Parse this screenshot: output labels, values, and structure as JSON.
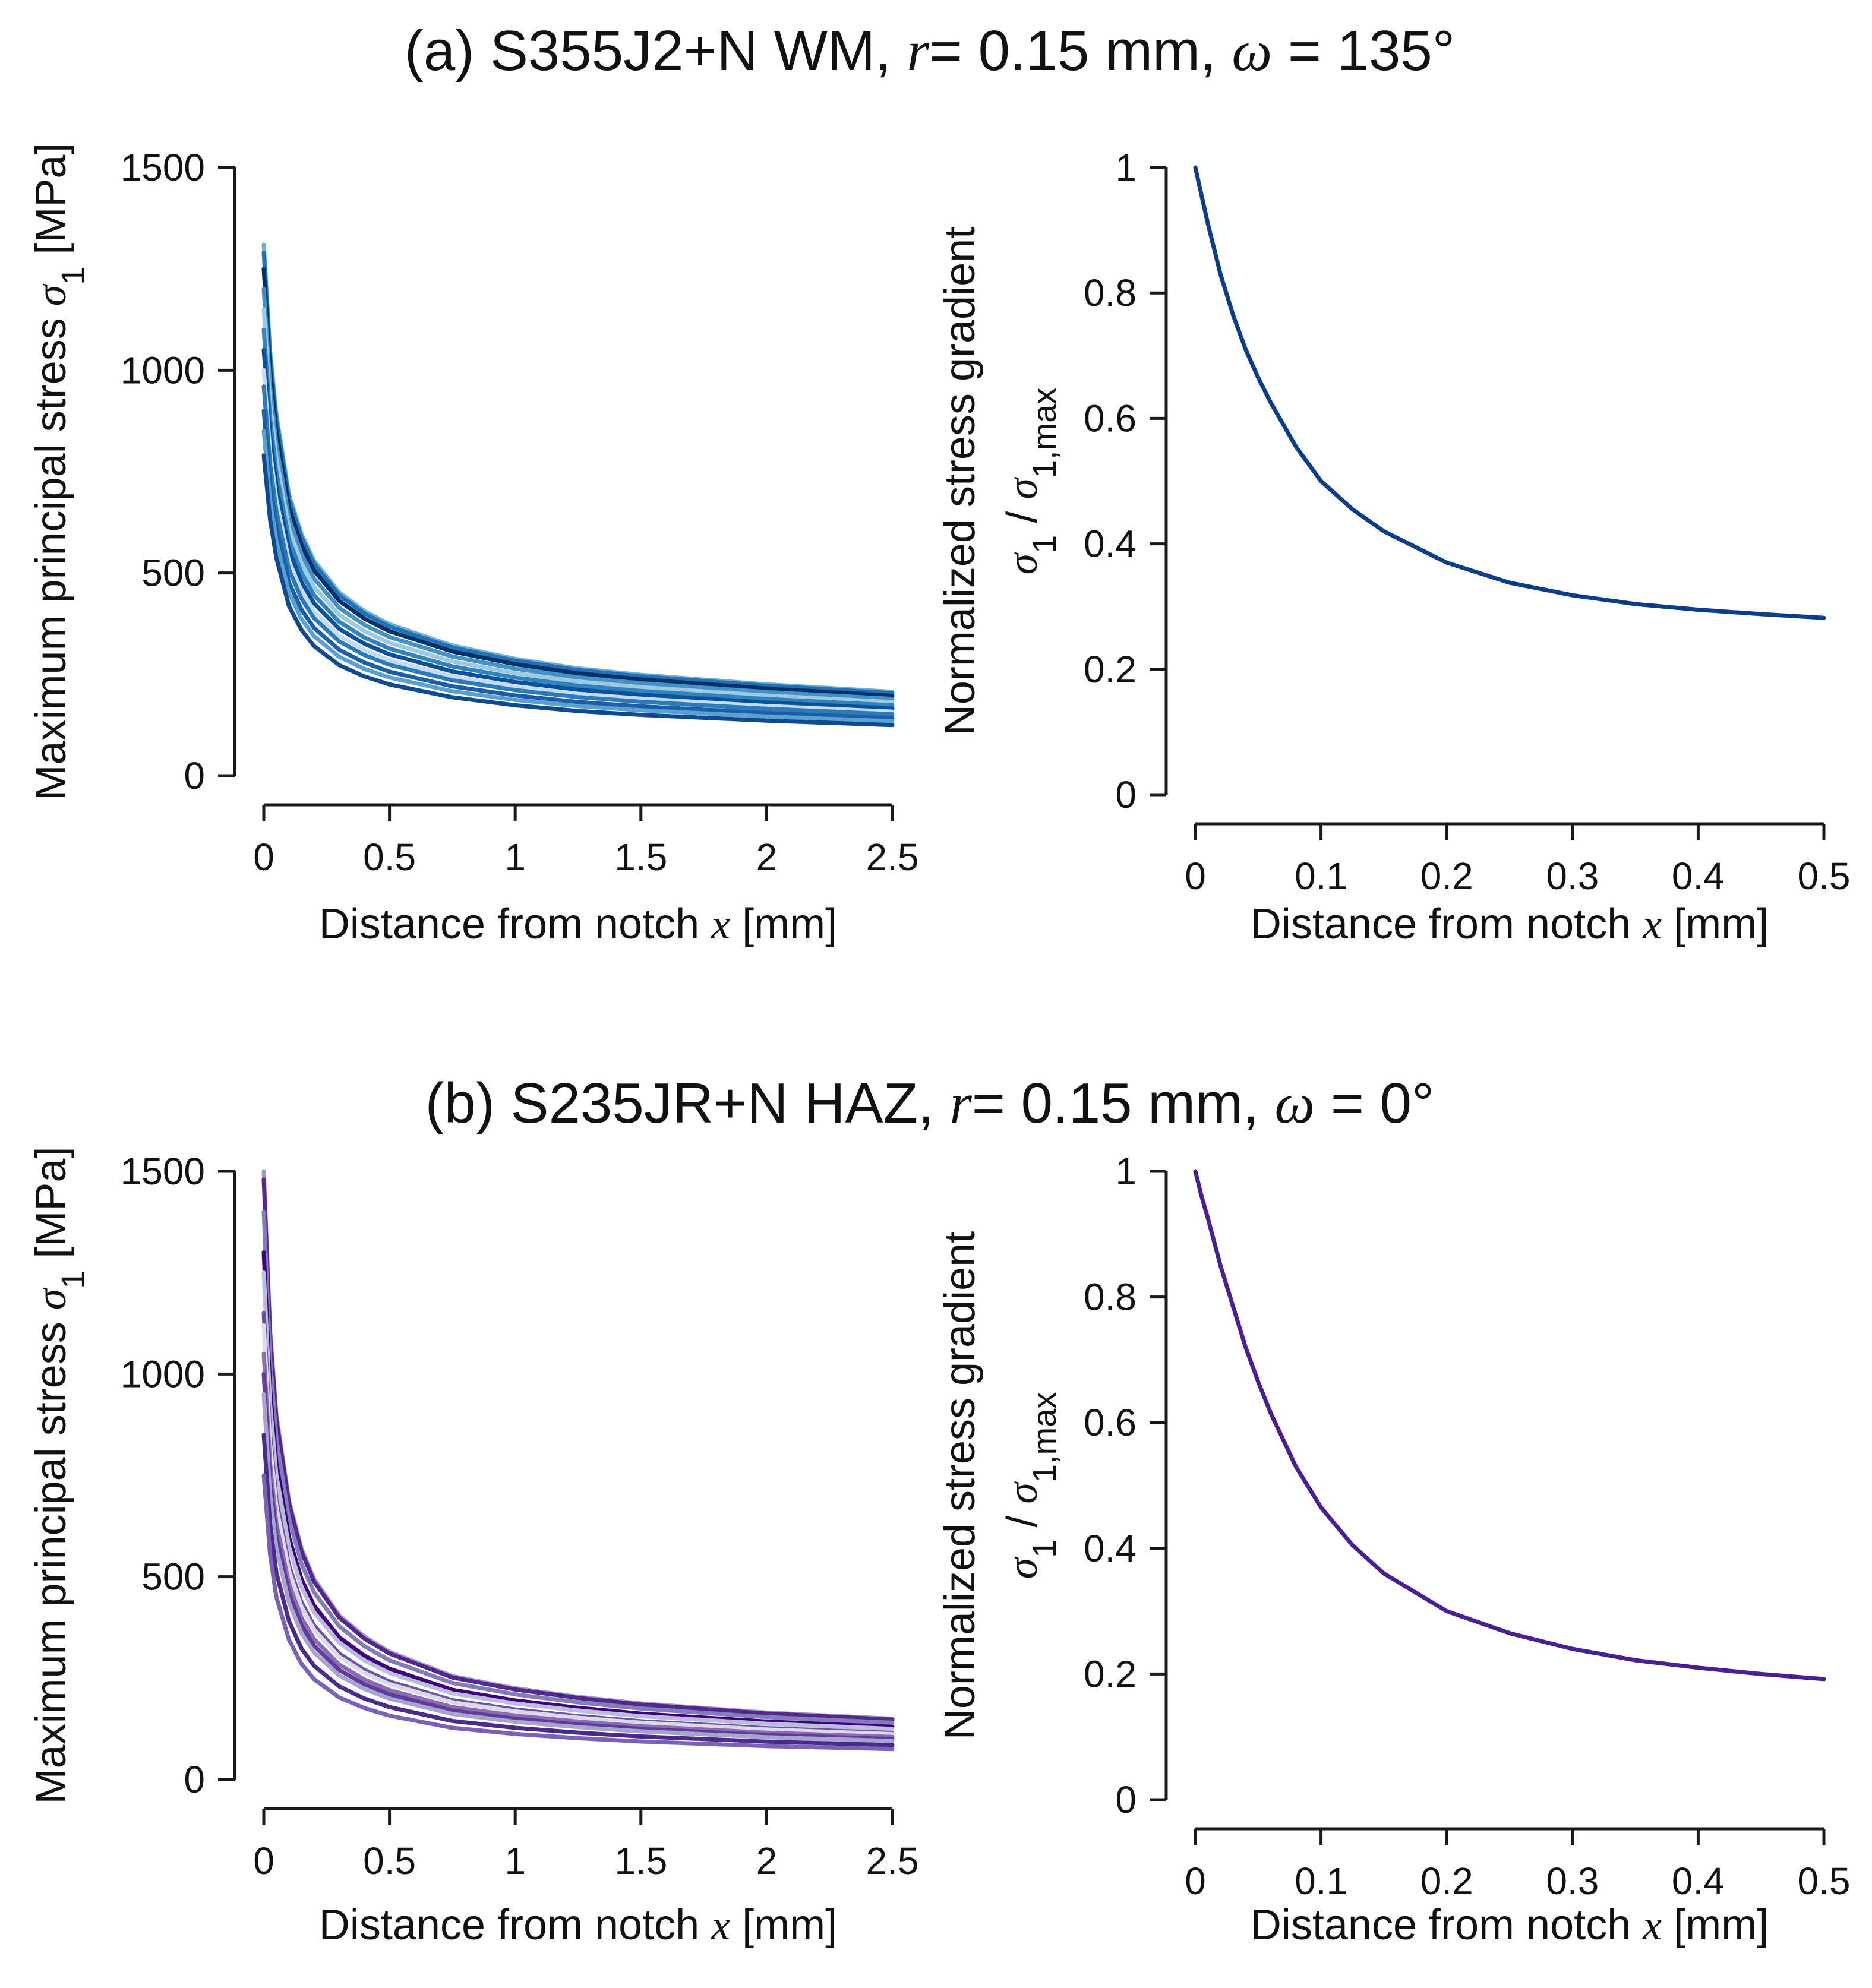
{
  "panel_titles": [
    {
      "prefix": "(a) S355J2+N WM, ",
      "r_symbol": "r",
      "r_text": "= 0.15 mm, ",
      "omega_symbol": "ω",
      "omega_text": " = 135°"
    },
    {
      "prefix": "(b) S235JR+N HAZ, ",
      "r_symbol": "r",
      "r_text": "= 0.15 mm, ",
      "omega_symbol": "ω",
      "omega_text": " = 0°"
    }
  ],
  "chart_data": [
    {
      "id": "a-left",
      "type": "line",
      "ylabel_text": "Maximum principal stress",
      "ylabel_symbol": "σ",
      "ylabel_sub": "1",
      "ylabel_unit": "[MPa]",
      "xlabel_text": "Distance from notch",
      "xlabel_symbol": "x",
      "xlabel_unit": "[mm]",
      "xlim": [
        0,
        2.5
      ],
      "ylim": [
        0,
        1500
      ],
      "xticks": [
        "0",
        "0.5",
        "1",
        "1.5",
        "2",
        "2.5"
      ],
      "yticks": [
        "0",
        "500",
        "1000",
        "1500"
      ],
      "colors": [
        "#6baed6",
        "#2171b5",
        "#08306b",
        "#4292c6",
        "#9ecae1",
        "#3182bd",
        "#08519c",
        "#c6dbef",
        "#2b7bba",
        "#1c5fa8",
        "#5aa0d0",
        "#0d4a8f"
      ],
      "x": [
        0,
        0.025,
        0.05,
        0.1,
        0.15,
        0.2,
        0.3,
        0.4,
        0.5,
        0.75,
        1.0,
        1.25,
        1.5,
        2.0,
        2.5
      ],
      "shape": [
        1.0,
        0.8,
        0.68,
        0.53,
        0.455,
        0.405,
        0.345,
        0.31,
        0.285,
        0.245,
        0.22,
        0.202,
        0.19,
        0.172,
        0.158
      ],
      "series_peaks": [
        1310,
        1290,
        1250,
        1200,
        1150,
        1100,
        1050,
        1000,
        960,
        900,
        850,
        790
      ]
    },
    {
      "id": "a-right",
      "type": "line",
      "ylabel_text": "Normalized stress gradient",
      "ylabel2_symbol": "σ",
      "ylabel2_sub": "1",
      "ylabel2_slash": "/",
      "ylabel2_symbol2": "σ",
      "ylabel2_sub2": "1,max",
      "xlabel_text": "Distance from notch",
      "xlabel_symbol": "x",
      "xlabel_unit": "[mm]",
      "xlim": [
        0,
        0.5
      ],
      "ylim": [
        0,
        1
      ],
      "xticks": [
        "0",
        "0.1",
        "0.2",
        "0.3",
        "0.4",
        "0.5"
      ],
      "yticks": [
        "0",
        "0.2",
        "0.4",
        "0.6",
        "0.8",
        "1"
      ],
      "color": "#0b3d8a",
      "x": [
        0,
        0.005,
        0.01,
        0.02,
        0.03,
        0.04,
        0.05,
        0.06,
        0.08,
        0.1,
        0.125,
        0.15,
        0.2,
        0.25,
        0.3,
        0.35,
        0.4,
        0.45,
        0.5
      ],
      "y": [
        1.0,
        0.955,
        0.91,
        0.83,
        0.765,
        0.71,
        0.665,
        0.625,
        0.555,
        0.5,
        0.455,
        0.42,
        0.37,
        0.338,
        0.318,
        0.304,
        0.295,
        0.288,
        0.282
      ]
    },
    {
      "id": "b-left",
      "type": "line",
      "ylabel_text": "Maximum principal stress",
      "ylabel_symbol": "σ",
      "ylabel_sub": "1",
      "ylabel_unit": "[MPa]",
      "xlabel_text": "Distance from notch",
      "xlabel_symbol": "x",
      "xlabel_unit": "[mm]",
      "xlim": [
        0,
        2.5
      ],
      "ylim": [
        0,
        1500
      ],
      "xticks": [
        "0",
        "0.5",
        "1",
        "1.5",
        "2",
        "2.5"
      ],
      "yticks": [
        "0",
        "500",
        "1000",
        "1500"
      ],
      "colors": [
        "#9e9ac8",
        "#54278f",
        "#807dba",
        "#3f007d",
        "#bcbddc",
        "#6a51a3",
        "#dadaeb",
        "#8c6bb1",
        "#5e3c99",
        "#a8a4d0",
        "#4a2a8a",
        "#7a62b6"
      ],
      "x": [
        0,
        0.025,
        0.05,
        0.1,
        0.15,
        0.2,
        0.3,
        0.4,
        0.5,
        0.75,
        1.0,
        1.25,
        1.5,
        2.0,
        2.5
      ],
      "shape": [
        1.0,
        0.74,
        0.6,
        0.46,
        0.38,
        0.33,
        0.27,
        0.235,
        0.21,
        0.17,
        0.15,
        0.136,
        0.125,
        0.11,
        0.1
      ],
      "series_peaks": [
        1500,
        1480,
        1400,
        1300,
        1250,
        1150,
        1120,
        1050,
        1000,
        950,
        850,
        750
      ]
    },
    {
      "id": "b-right",
      "type": "line",
      "ylabel_text": "Normalized stress gradient",
      "ylabel2_symbol": "σ",
      "ylabel2_sub": "1",
      "ylabel2_slash": "/",
      "ylabel2_symbol2": "σ",
      "ylabel2_sub2": "1,max",
      "xlabel_text": "Distance from notch",
      "xlabel_symbol": "x",
      "xlabel_unit": "[mm]",
      "xlim": [
        0,
        0.5
      ],
      "ylim": [
        0,
        1
      ],
      "xticks": [
        "0",
        "0.1",
        "0.2",
        "0.3",
        "0.4",
        "0.5"
      ],
      "yticks": [
        "0",
        "0.2",
        "0.4",
        "0.6",
        "0.8",
        "1"
      ],
      "color": "#4b1f94",
      "x": [
        0,
        0.005,
        0.01,
        0.02,
        0.03,
        0.04,
        0.05,
        0.06,
        0.08,
        0.1,
        0.125,
        0.15,
        0.2,
        0.25,
        0.3,
        0.35,
        0.4,
        0.45,
        0.5
      ],
      "y": [
        1.0,
        0.96,
        0.925,
        0.85,
        0.785,
        0.72,
        0.665,
        0.615,
        0.53,
        0.465,
        0.405,
        0.36,
        0.3,
        0.265,
        0.24,
        0.222,
        0.21,
        0.2,
        0.192
      ]
    }
  ]
}
